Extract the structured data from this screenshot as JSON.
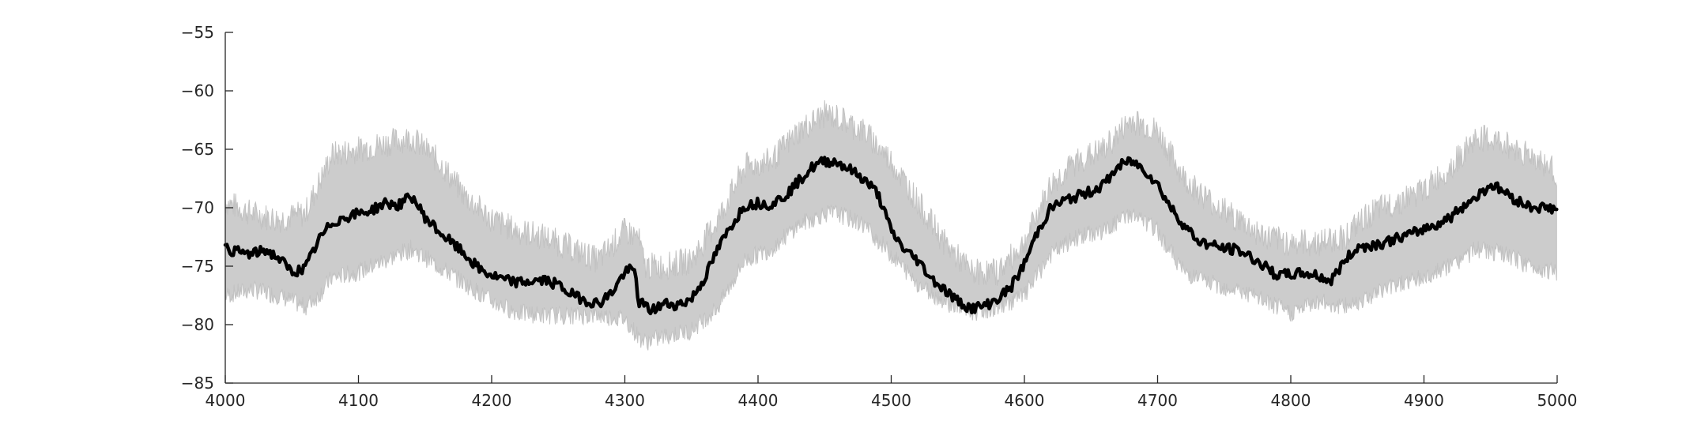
{
  "chart_data": {
    "type": "line",
    "title": "",
    "xlabel": "",
    "ylabel": "",
    "xlim": [
      4000,
      5000
    ],
    "ylim": [
      -85,
      -55
    ],
    "grid": false,
    "legend": "none",
    "x_ticks": [
      4000,
      4100,
      4200,
      4300,
      4400,
      4500,
      4600,
      4700,
      4800,
      4900,
      5000
    ],
    "y_ticks": [
      -55,
      -60,
      -65,
      -70,
      -75,
      -80,
      -85
    ],
    "x_tick_labels": [
      "4000",
      "4100",
      "4200",
      "4300",
      "4400",
      "4500",
      "4600",
      "4700",
      "4800",
      "4900",
      "5000"
    ],
    "y_tick_labels": [
      "−55",
      "−60",
      "−65",
      "−70",
      "−75",
      "−80",
      "−85"
    ],
    "colors": {
      "mean": "#000000",
      "band": "#cccccc",
      "axis": "#262626"
    },
    "series": [
      {
        "role": "mean",
        "x": [
          4000,
          4010,
          4020,
          4030,
          4040,
          4050,
          4060,
          4070,
          4080,
          4090,
          4100,
          4110,
          4120,
          4130,
          4140,
          4150,
          4160,
          4170,
          4180,
          4190,
          4200,
          4210,
          4220,
          4230,
          4240,
          4250,
          4260,
          4270,
          4280,
          4290,
          4300,
          4305,
          4308,
          4310,
          4320,
          4330,
          4340,
          4350,
          4360,
          4370,
          4380,
          4390,
          4400,
          4410,
          4420,
          4430,
          4440,
          4450,
          4460,
          4470,
          4480,
          4490,
          4500,
          4510,
          4520,
          4530,
          4540,
          4550,
          4560,
          4570,
          4580,
          4590,
          4600,
          4610,
          4620,
          4630,
          4640,
          4650,
          4660,
          4670,
          4680,
          4690,
          4700,
          4710,
          4720,
          4730,
          4740,
          4750,
          4760,
          4770,
          4780,
          4790,
          4800,
          4810,
          4820,
          4830,
          4840,
          4850,
          4860,
          4870,
          4880,
          4890,
          4900,
          4910,
          4920,
          4930,
          4940,
          4950,
          4960,
          4970,
          4980,
          4990,
          5000
        ],
        "y": [
          -73.5,
          -73.8,
          -74.0,
          -73.6,
          -74.3,
          -75.5,
          -75.2,
          -72.8,
          -71.3,
          -70.8,
          -70.5,
          -70.2,
          -69.6,
          -69.8,
          -69.0,
          -70.8,
          -72.0,
          -73.0,
          -74.0,
          -75.2,
          -75.8,
          -76.2,
          -76.4,
          -76.3,
          -76.2,
          -76.6,
          -77.4,
          -77.9,
          -78.2,
          -77.3,
          -75.5,
          -75.3,
          -75.6,
          -78.0,
          -78.8,
          -78.2,
          -78.3,
          -77.8,
          -76.0,
          -73.5,
          -71.5,
          -69.8,
          -69.6,
          -69.7,
          -69.0,
          -67.8,
          -66.6,
          -66.0,
          -66.1,
          -66.8,
          -67.6,
          -68.8,
          -72.0,
          -73.6,
          -74.5,
          -76.0,
          -77.0,
          -78.0,
          -78.6,
          -78.4,
          -77.8,
          -76.8,
          -74.8,
          -72.0,
          -70.0,
          -69.4,
          -69.0,
          -68.6,
          -68.0,
          -66.5,
          -66.0,
          -66.7,
          -68.0,
          -70.0,
          -71.5,
          -72.8,
          -73.2,
          -73.5,
          -73.6,
          -74.2,
          -75.0,
          -75.8,
          -75.7,
          -75.6,
          -75.8,
          -76.3,
          -74.6,
          -73.4,
          -73.2,
          -73.0,
          -72.6,
          -72.3,
          -71.8,
          -71.4,
          -70.8,
          -69.8,
          -69.0,
          -68.0,
          -68.6,
          -69.4,
          -69.9,
          -70.0,
          -70.1
        ]
      },
      {
        "role": "band-upper",
        "x": [
          4000,
          4020,
          4040,
          4060,
          4070,
          4080,
          4100,
          4120,
          4140,
          4160,
          4180,
          4200,
          4220,
          4240,
          4260,
          4280,
          4300,
          4310,
          4315,
          4330,
          4350,
          4370,
          4390,
          4410,
          4430,
          4450,
          4460,
          4480,
          4500,
          4520,
          4540,
          4560,
          4580,
          4600,
          4620,
          4640,
          4660,
          4680,
          4700,
          4720,
          4740,
          4760,
          4780,
          4800,
          4820,
          4840,
          4860,
          4880,
          4900,
          4920,
          4940,
          4960,
          4980,
          5000
        ],
        "y": [
          -69.5,
          -70.5,
          -71.0,
          -70.5,
          -68.0,
          -65.5,
          -65.0,
          -64.5,
          -64.0,
          -66.0,
          -69.0,
          -71.0,
          -72.0,
          -72.5,
          -73.5,
          -74.5,
          -72.0,
          -72.5,
          -75.0,
          -75.0,
          -74.5,
          -71.0,
          -66.5,
          -66.0,
          -63.5,
          -62.0,
          -62.3,
          -63.5,
          -66.0,
          -69.5,
          -73.0,
          -75.5,
          -75.5,
          -73.0,
          -68.0,
          -66.0,
          -65.0,
          -62.5,
          -63.5,
          -67.5,
          -69.5,
          -71.0,
          -72.5,
          -73.0,
          -73.0,
          -72.5,
          -70.5,
          -69.5,
          -68.5,
          -66.5,
          -64.0,
          -64.5,
          -65.5,
          -67.0
        ]
      },
      {
        "role": "band-lower",
        "x": [
          4000,
          4020,
          4040,
          4060,
          4070,
          4080,
          4100,
          4120,
          4140,
          4160,
          4180,
          4200,
          4220,
          4240,
          4260,
          4280,
          4300,
          4310,
          4315,
          4330,
          4350,
          4370,
          4390,
          4410,
          4430,
          4450,
          4460,
          4480,
          4500,
          4520,
          4540,
          4560,
          4580,
          4600,
          4620,
          4640,
          4660,
          4680,
          4700,
          4720,
          4740,
          4760,
          4780,
          4800,
          4820,
          4840,
          4860,
          4880,
          4900,
          4920,
          4940,
          4960,
          4980,
          5000
        ],
        "y": [
          -77.5,
          -77.0,
          -77.5,
          -78.5,
          -77.5,
          -76.0,
          -75.5,
          -74.5,
          -73.5,
          -75.0,
          -76.5,
          -78.0,
          -79.0,
          -79.2,
          -79.2,
          -79.2,
          -79.5,
          -81.0,
          -81.5,
          -81.0,
          -80.5,
          -78.5,
          -74.5,
          -73.5,
          -71.5,
          -70.5,
          -70.5,
          -71.5,
          -74.0,
          -76.5,
          -78.0,
          -79.0,
          -78.5,
          -77.5,
          -74.0,
          -72.5,
          -72.0,
          -70.5,
          -72.0,
          -75.5,
          -76.5,
          -77.0,
          -78.0,
          -79.0,
          -78.0,
          -78.5,
          -77.5,
          -76.5,
          -76.0,
          -75.0,
          -73.5,
          -74.0,
          -75.0,
          -75.5
        ]
      }
    ]
  }
}
